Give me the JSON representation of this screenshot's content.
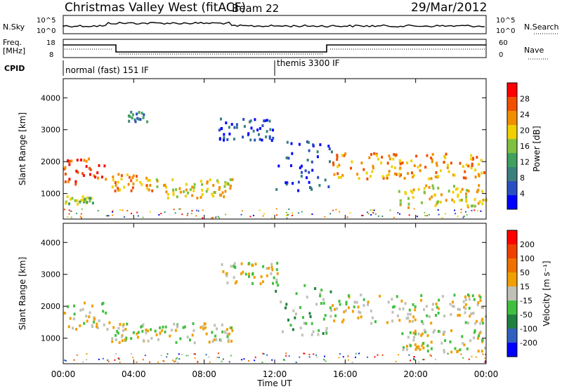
{
  "header": {
    "title": "Christmas Valley West (fitACF)",
    "beam": "Beam 22",
    "date": "29/Mar/2012"
  },
  "top_panels": {
    "nsky_label": "N.Sky",
    "nsearch_label": "N.Search",
    "noise_ticks": [
      "10^5",
      "10^0"
    ],
    "freq_label_1": "Freq.",
    "freq_label_2": "[MHz]",
    "freq_ticks": [
      "18",
      "8"
    ],
    "nave_label": "Nave",
    "nave_ticks": [
      "60",
      "0"
    ],
    "cpid_label": "CPID",
    "cpid_1": "normal (fast) 151 IF",
    "cpid_2": "themis 3300 IF"
  },
  "colors": {
    "power": [
      "#0000ff",
      "#2a4fc0",
      "#3b7f7f",
      "#40a060",
      "#7fc040",
      "#f0d000",
      "#f09000",
      "#f05000",
      "#ff0000"
    ],
    "velocity": [
      "#0000ff",
      "#3060c0",
      "#208040",
      "#40c040",
      "#c0c0b8",
      "#f0a000",
      "#f07000",
      "#f04000",
      "#ff0000"
    ]
  },
  "chart_data": [
    {
      "type": "heatmap",
      "title": "Power",
      "xlabel": "",
      "ylabel": "Slant Range [km]",
      "colorbar_label": "Power [dB]",
      "colorbar_ticks": [
        "28",
        "24",
        "20",
        "16",
        "12",
        "8",
        "4"
      ],
      "x_ticks": [
        "00:00",
        "04:00",
        "08:00",
        "12:00",
        "16:00",
        "20:00",
        "00:00"
      ],
      "y_ticks": [
        "1000",
        "2000",
        "3000",
        "4000"
      ],
      "ylim": [
        200,
        4600
      ],
      "xlim_hours": [
        0,
        24
      ],
      "echo_regions": [
        {
          "t0": 0.0,
          "t1": 2.4,
          "r0": 1300,
          "r1": 2150,
          "level": 7
        },
        {
          "t0": 0.0,
          "t1": 1.8,
          "r0": 700,
          "r1": 950,
          "level": 4
        },
        {
          "t0": 2.7,
          "t1": 5.2,
          "r0": 1100,
          "r1": 1650,
          "level": 6
        },
        {
          "t0": 5.2,
          "t1": 9.6,
          "r0": 900,
          "r1": 1500,
          "level": 5
        },
        {
          "t0": 3.6,
          "t1": 4.8,
          "r0": 3200,
          "r1": 3600,
          "level": 2
        },
        {
          "t0": 8.8,
          "t1": 12.2,
          "r0": 2700,
          "r1": 3400,
          "level": 1
        },
        {
          "t0": 12.0,
          "t1": 15.2,
          "r0": 1100,
          "r1": 2700,
          "level": 1
        },
        {
          "t0": 15.2,
          "t1": 24.0,
          "r0": 1500,
          "r1": 2300,
          "level": 6
        },
        {
          "t0": 19.0,
          "t1": 24.0,
          "r0": 600,
          "r1": 1300,
          "level": 5
        }
      ]
    },
    {
      "type": "heatmap",
      "title": "Velocity",
      "xlabel": "Time UT",
      "ylabel": "Slant Range [km]",
      "colorbar_label": "Velocity [m s⁻¹]",
      "colorbar_ticks": [
        "200",
        "100",
        "50",
        "15",
        "-15",
        "-50",
        "-100",
        "-200"
      ],
      "x_ticks": [
        "00:00",
        "04:00",
        "08:00",
        "12:00",
        "16:00",
        "20:00",
        "00:00"
      ],
      "y_ticks": [
        "1000",
        "2000",
        "3000",
        "4000"
      ],
      "ylim": [
        200,
        4600
      ],
      "xlim_hours": [
        0,
        24
      ],
      "echo_regions": [
        {
          "t0": 0.0,
          "t1": 2.6,
          "r0": 1300,
          "r1": 2150,
          "level": 4
        },
        {
          "t0": 2.7,
          "t1": 9.6,
          "r0": 900,
          "r1": 1500,
          "level": 4
        },
        {
          "t0": 8.8,
          "t1": 12.2,
          "r0": 2700,
          "r1": 3400,
          "level": 4
        },
        {
          "t0": 12.0,
          "t1": 15.2,
          "r0": 1100,
          "r1": 2700,
          "level": 3
        },
        {
          "t0": 15.2,
          "t1": 24.0,
          "r0": 1500,
          "r1": 2400,
          "level": 4
        },
        {
          "t0": 19.0,
          "t1": 24.0,
          "r0": 600,
          "r1": 1300,
          "level": 4
        }
      ]
    }
  ]
}
